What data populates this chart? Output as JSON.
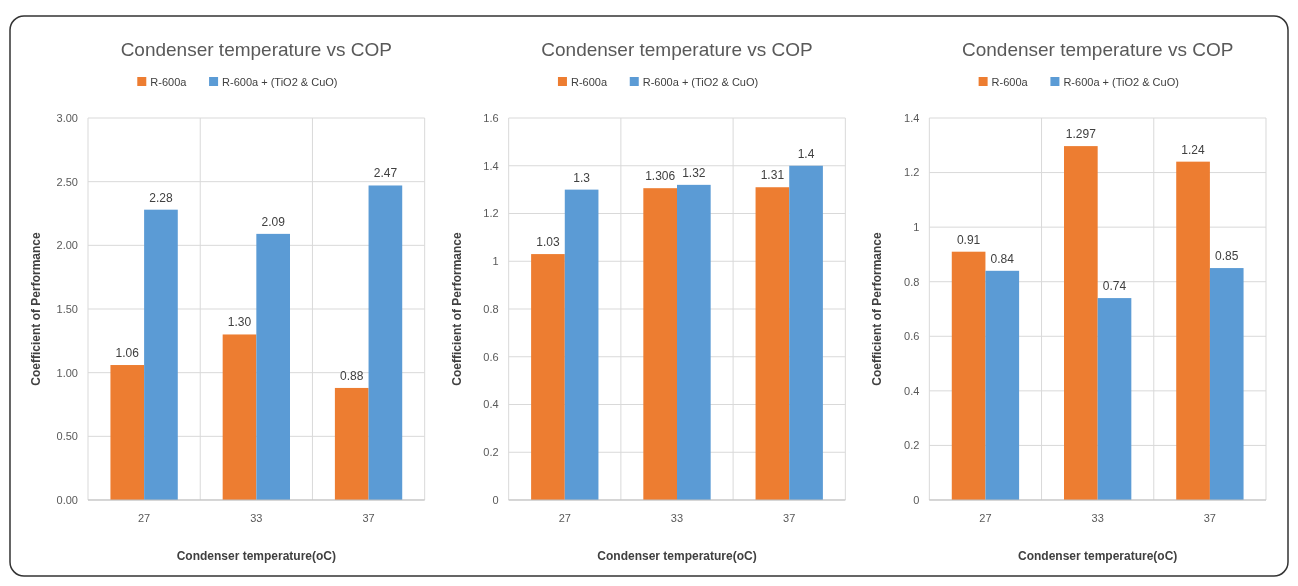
{
  "chart_data": [
    {
      "type": "bar",
      "title": "Condenser temperature vs COP",
      "xlabel": "Condenser temperature(oC)",
      "ylabel": "Coefficient of Performance",
      "categories": [
        "27",
        "33",
        "37"
      ],
      "series": [
        {
          "name": "R-600a",
          "color": "#ed7d31",
          "values": [
            1.06,
            1.3,
            0.88
          ],
          "value_labels": [
            "1.06",
            "1.30",
            "0.88"
          ]
        },
        {
          "name": "R-600a + (TiO2 & CuO)",
          "color": "#5b9bd5",
          "values": [
            2.28,
            2.09,
            2.47
          ],
          "value_labels": [
            "2.28",
            "2.09",
            "2.47"
          ]
        }
      ],
      "ylim": [
        0,
        3
      ],
      "yticks": [
        {
          "value": 0,
          "label": "0.00"
        },
        {
          "value": 0.5,
          "label": "0.50"
        },
        {
          "value": 1,
          "label": "1.00"
        },
        {
          "value": 1.5,
          "label": "1.50"
        },
        {
          "value": 2,
          "label": "2.00"
        },
        {
          "value": 2.5,
          "label": "2.50"
        },
        {
          "value": 3,
          "label": "3.00"
        }
      ],
      "grid": true,
      "legend": "top"
    },
    {
      "type": "bar",
      "title": "Condenser temperature vs COP",
      "xlabel": "Condenser temperature(oC)",
      "ylabel": "Coefficient of Performance",
      "categories": [
        "27",
        "33",
        "37"
      ],
      "series": [
        {
          "name": "R-600a",
          "color": "#ed7d31",
          "values": [
            1.03,
            1.306,
            1.31
          ]
        },
        {
          "name": "R-600a + (TiO2 & CuO)",
          "color": "#5b9bd5",
          "values": [
            1.3,
            1.32,
            1.4
          ]
        }
      ],
      "ylim": [
        0,
        1.6
      ],
      "yticks": [
        0,
        0.2,
        0.4,
        0.6,
        0.8,
        1,
        1.2,
        1.4,
        1.6
      ],
      "grid": true,
      "legend": "top",
      "data_labels": true
    },
    {
      "type": "bar",
      "title": "Condenser temperature vs COP",
      "xlabel": "Condenser temperature(oC)",
      "ylabel": "Coefficient of Performance",
      "categories": [
        "27",
        "33",
        "37"
      ],
      "series": [
        {
          "name": "R-600a",
          "color": "#ed7d31",
          "values": [
            0.91,
            1.297,
            1.24
          ]
        },
        {
          "name": "R-600a + (TiO2 & CuO)",
          "color": "#5b9bd5",
          "values": [
            0.84,
            0.74,
            0.85
          ]
        }
      ],
      "ylim": [
        0,
        1.4
      ],
      "yticks": [
        0,
        0.2,
        0.4,
        0.6,
        0.8,
        1,
        1.2,
        1.4
      ],
      "grid": true,
      "legend": "top",
      "data_labels": true
    }
  ]
}
